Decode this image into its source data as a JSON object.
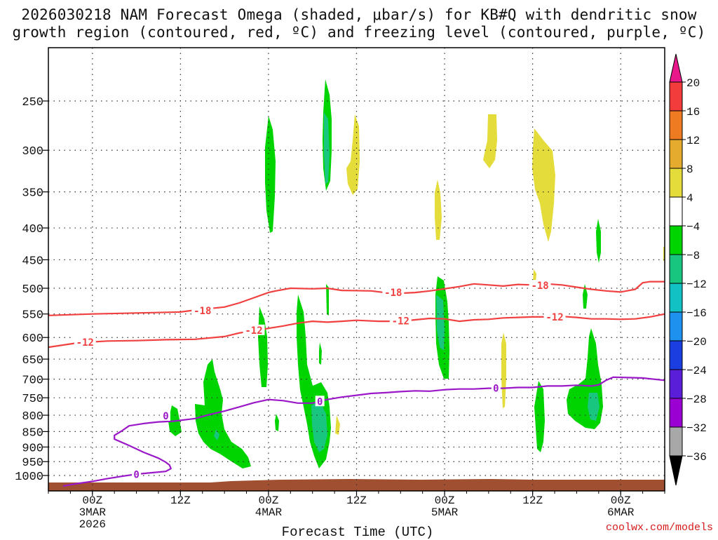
{
  "title": {
    "line1": "2026030218 NAM Forecast Omega (shaded, μbar/s) for KB#Q with dendritic snow",
    "line2": "growth region (contoured, red, ºC) and freezing level (contoured, purple, ºC)"
  },
  "footer": {
    "credit": "coolwx.com/models"
  },
  "chart_data": {
    "type": "heatmap",
    "title": "2026030218 NAM Forecast Omega (shaded, μbar/s) for KB#Q with dendritic snow growth region (contoured, red, ºC) and freezing level (contoured, purple, ºC)",
    "xlabel": "Forecast Time (UTC)",
    "ylabel": "",
    "x_ticks": [
      {
        "hour": 6,
        "lines": [
          "00Z",
          "3MAR",
          "2026"
        ]
      },
      {
        "hour": 18,
        "lines": [
          "12Z"
        ]
      },
      {
        "hour": 30,
        "lines": [
          "00Z",
          "4MAR"
        ]
      },
      {
        "hour": 42,
        "lines": [
          "12Z"
        ]
      },
      {
        "hour": 54,
        "lines": [
          "00Z",
          "5MAR"
        ]
      },
      {
        "hour": 66,
        "lines": [
          "12Z"
        ]
      },
      {
        "hour": 78,
        "lines": [
          "00Z",
          "6MAR"
        ]
      }
    ],
    "x_range_hours": [
      0,
      84
    ],
    "y_ticks_hpa": [
      250,
      300,
      350,
      400,
      450,
      500,
      550,
      600,
      650,
      700,
      750,
      800,
      850,
      900,
      950,
      1000
    ],
    "y_range_hpa": [
      1050,
      200
    ],
    "grid": true,
    "colorbar": {
      "labels": [
        "20",
        "16",
        "12",
        "8",
        "4",
        "−4",
        "−8",
        "−12",
        "−16",
        "−20",
        "−24",
        "−28",
        "−32",
        "−36"
      ],
      "colors": [
        "#f23c3c",
        "#ee7b22",
        "#e4ab2f",
        "#e4dc3a",
        "#ffffff",
        "#00d400",
        "#18c680",
        "#12c1c4",
        "#1e90ee",
        "#1a3ee0",
        "#5a1ed8",
        "#9a00d2",
        "#a8a8a8"
      ],
      "top_arrow_color": "#e8188a",
      "bottom_arrow_color": "#000000"
    },
    "series": [
      {
        "name": "-18 ºC isotherm (dendritic growth top)",
        "color": "#f04040",
        "label": "-18",
        "points": [
          [
            0,
            553
          ],
          [
            6,
            550
          ],
          [
            12,
            548
          ],
          [
            18,
            546
          ],
          [
            20,
            542
          ],
          [
            24,
            536
          ],
          [
            26,
            528
          ],
          [
            28,
            518
          ],
          [
            30,
            508
          ],
          [
            31,
            505
          ],
          [
            33,
            500
          ],
          [
            36,
            501
          ],
          [
            38,
            500
          ],
          [
            40,
            504
          ],
          [
            44,
            505
          ],
          [
            47,
            510
          ],
          [
            50,
            508
          ],
          [
            52,
            505
          ],
          [
            54,
            501
          ],
          [
            56,
            497
          ],
          [
            58,
            492
          ],
          [
            60,
            494
          ],
          [
            62,
            496
          ],
          [
            64,
            493
          ],
          [
            66,
            494
          ],
          [
            68,
            492
          ],
          [
            70,
            494
          ],
          [
            72,
            498
          ],
          [
            74,
            502
          ],
          [
            76,
            505
          ],
          [
            78,
            507
          ],
          [
            80,
            502
          ],
          [
            81,
            490
          ],
          [
            82,
            488
          ],
          [
            84,
            488
          ]
        ],
        "label_positions": [
          [
            21,
            543
          ],
          [
            47,
            508
          ],
          [
            67,
            495
          ]
        ]
      },
      {
        "name": "-12 ºC isotherm (dendritic growth bottom)",
        "color": "#f04040",
        "label": "-12",
        "points": [
          [
            0,
            622
          ],
          [
            4,
            612
          ],
          [
            8,
            608
          ],
          [
            12,
            607
          ],
          [
            16,
            605
          ],
          [
            20,
            604
          ],
          [
            24,
            598
          ],
          [
            26,
            590
          ],
          [
            28,
            585
          ],
          [
            30,
            580
          ],
          [
            32,
            575
          ],
          [
            34,
            569
          ],
          [
            36,
            565
          ],
          [
            38,
            567
          ],
          [
            40,
            565
          ],
          [
            42,
            563
          ],
          [
            45,
            565
          ],
          [
            48,
            565
          ],
          [
            50,
            562
          ],
          [
            52,
            559
          ],
          [
            54,
            560
          ],
          [
            56,
            565
          ],
          [
            58,
            562
          ],
          [
            60,
            561
          ],
          [
            62,
            558
          ],
          [
            64,
            557
          ],
          [
            66,
            556
          ],
          [
            68,
            556
          ],
          [
            70,
            555
          ],
          [
            72,
            557
          ],
          [
            74,
            560
          ],
          [
            76,
            560
          ],
          [
            78,
            561
          ],
          [
            80,
            560
          ],
          [
            82,
            556
          ],
          [
            84,
            550
          ]
        ],
        "label_positions": [
          [
            5,
            611
          ],
          [
            28,
            584
          ],
          [
            48,
            564
          ],
          [
            69,
            556
          ]
        ]
      },
      {
        "name": "0 ºC isotherm (freezing level)",
        "color": "#9a18c8",
        "label": "0",
        "points": [
          [
            2,
            1040
          ],
          [
            4,
            1030
          ],
          [
            6,
            1022
          ],
          [
            8,
            1012
          ],
          [
            10,
            1003
          ],
          [
            12,
            995
          ],
          [
            14,
            990
          ],
          [
            16,
            985
          ],
          [
            16.7,
            975
          ],
          [
            16.5,
            962
          ],
          [
            16,
            952
          ],
          [
            15,
            938
          ],
          [
            13,
            918
          ],
          [
            11,
            895
          ],
          [
            9,
            874
          ],
          [
            9,
            862
          ],
          [
            10,
            848
          ],
          [
            11,
            832
          ],
          [
            13,
            825
          ],
          [
            15,
            820
          ],
          [
            17,
            818
          ],
          [
            20,
            810
          ],
          [
            22,
            798
          ],
          [
            24,
            788
          ],
          [
            26,
            776
          ],
          [
            28,
            764
          ],
          [
            30,
            755
          ],
          [
            32,
            758
          ],
          [
            34,
            765
          ],
          [
            36,
            765
          ],
          [
            38,
            755
          ],
          [
            40,
            748
          ],
          [
            42,
            743
          ],
          [
            44,
            738
          ],
          [
            46,
            736
          ],
          [
            48,
            733
          ],
          [
            50,
            731
          ],
          [
            52,
            732
          ],
          [
            54,
            728
          ],
          [
            56,
            726
          ],
          [
            58,
            726
          ],
          [
            60,
            724
          ],
          [
            62,
            724
          ],
          [
            64,
            722
          ],
          [
            66,
            722
          ],
          [
            68,
            718
          ],
          [
            70,
            718
          ],
          [
            72,
            716
          ],
          [
            74,
            718
          ],
          [
            75,
            715
          ],
          [
            76,
            703
          ],
          [
            77,
            695
          ],
          [
            79,
            696
          ],
          [
            81,
            697
          ],
          [
            84,
            703
          ]
        ],
        "label_positions": [
          [
            12,
            996
          ],
          [
            16,
            802
          ],
          [
            37,
            760
          ],
          [
            61,
            724
          ]
        ]
      }
    ],
    "omega_regions_note": "Shaded omega cells: green (-4 to -8) and teal (-8 to -12) ascent columns near 12Z-00Z 3-4MAR, 4MAR 06Z-09Z, 5MAR 00Z, 5MAR 12Z and 18Z; yellow (4 to 8) subsidence aloft near 4MAR 12Z and 5MAR 06Z-15Z",
    "ground": {
      "color": "#a05030"
    }
  }
}
